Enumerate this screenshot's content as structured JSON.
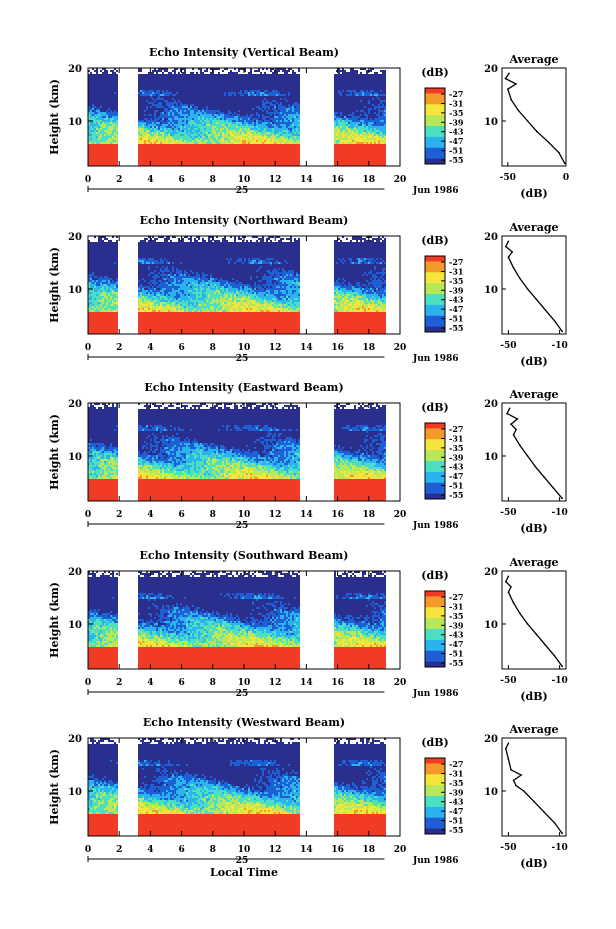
{
  "figure": {
    "xlabel": "Local Time",
    "date_label": "Jun 1986",
    "day_label": "25",
    "colorbar_unit": "(dB)",
    "colorbar_ticks": [
      "-27",
      "-31",
      "-35",
      "-39",
      "-43",
      "-47",
      "-51",
      "-55"
    ],
    "colors": {
      "scale": [
        "#2a2f8e",
        "#1f5fd6",
        "#2bb3f0",
        "#4de0c0",
        "#b7e85a",
        "#f5e53c",
        "#f59a2a",
        "#f23b24"
      ],
      "background": "#ffffff",
      "axis": "#000000"
    }
  },
  "chart_data": [
    {
      "type": "heatmap",
      "title": "Echo Intensity (Vertical Beam)",
      "ylabel": "Height (km)",
      "xlim": [
        0,
        20
      ],
      "ylim": [
        1.5,
        20
      ],
      "xticks": [
        0,
        2,
        4,
        6,
        8,
        10,
        12,
        14,
        16,
        18,
        20
      ],
      "yticks": [
        10,
        20
      ],
      "data_gaps_hours": [
        [
          1.8,
          3.2
        ],
        [
          13.5,
          15.7
        ]
      ],
      "data_end_hour": 19.0,
      "colorbar": {
        "unit": "(dB)",
        "range": [
          -55,
          -27
        ]
      },
      "average_profile": {
        "title": "Average",
        "xlabel": "(dB)",
        "xlim": [
          -55,
          0
        ],
        "xticks": [
          -50,
          0
        ],
        "ylim": [
          1.5,
          20
        ],
        "yticks": [
          10,
          20
        ],
        "height_km": [
          2,
          4,
          6,
          8,
          10,
          12,
          14,
          16,
          17,
          18,
          19
        ],
        "intensity_db": [
          -1,
          -6,
          -15,
          -25,
          -33,
          -41,
          -47,
          -50,
          -43,
          -52,
          -49
        ]
      }
    },
    {
      "type": "heatmap",
      "title": "Echo Intensity (Northward Beam)",
      "ylabel": "Height (km)",
      "xlim": [
        0,
        20
      ],
      "ylim": [
        1.5,
        20
      ],
      "xticks": [
        0,
        2,
        4,
        6,
        8,
        10,
        12,
        14,
        16,
        18,
        20
      ],
      "yticks": [
        10,
        20
      ],
      "data_gaps_hours": [
        [
          1.8,
          3.2
        ],
        [
          13.5,
          15.7
        ]
      ],
      "data_end_hour": 19.0,
      "colorbar": {
        "unit": "(dB)",
        "range": [
          -55,
          -27
        ]
      },
      "average_profile": {
        "title": "Average",
        "xlabel": "(dB)",
        "xlim": [
          -55,
          -5
        ],
        "xticks": [
          -50,
          -10
        ],
        "ylim": [
          1.5,
          20
        ],
        "yticks": [
          10,
          20
        ],
        "height_km": [
          2,
          4,
          6,
          8,
          10,
          12,
          14,
          16,
          17,
          18,
          19
        ],
        "intensity_db": [
          -8,
          -14,
          -21,
          -28,
          -35,
          -41,
          -46,
          -50,
          -47,
          -52,
          -50
        ]
      }
    },
    {
      "type": "heatmap",
      "title": "Echo Intensity (Eastward Beam)",
      "ylabel": "Height (km)",
      "xlim": [
        0,
        20
      ],
      "ylim": [
        1.5,
        20
      ],
      "xticks": [
        0,
        2,
        4,
        6,
        8,
        10,
        12,
        14,
        16,
        18,
        20
      ],
      "yticks": [
        10,
        20
      ],
      "data_gaps_hours": [
        [
          1.8,
          3.2
        ],
        [
          13.5,
          15.7
        ]
      ],
      "data_end_hour": 19.0,
      "colorbar": {
        "unit": "(dB)",
        "range": [
          -55,
          -27
        ]
      },
      "average_profile": {
        "title": "Average",
        "xlabel": "(dB)",
        "xlim": [
          -55,
          -5
        ],
        "xticks": [
          -50,
          -10
        ],
        "ylim": [
          1.5,
          20
        ],
        "yticks": [
          10,
          20
        ],
        "height_km": [
          2,
          4,
          6,
          8,
          10,
          12,
          14,
          15,
          16,
          17,
          18,
          19
        ],
        "intensity_db": [
          -8,
          -15,
          -22,
          -29,
          -35,
          -41,
          -46,
          -44,
          -48,
          -43,
          -51,
          -49
        ]
      }
    },
    {
      "type": "heatmap",
      "title": "Echo Intensity (Southward Beam)",
      "ylabel": "Height (km)",
      "xlim": [
        0,
        20
      ],
      "ylim": [
        1.5,
        20
      ],
      "xticks": [
        0,
        2,
        4,
        6,
        8,
        10,
        12,
        14,
        16,
        18,
        20
      ],
      "yticks": [
        10,
        20
      ],
      "data_gaps_hours": [
        [
          1.8,
          3.2
        ],
        [
          13.5,
          15.7
        ]
      ],
      "data_end_hour": 19.0,
      "colorbar": {
        "unit": "(dB)",
        "range": [
          -55,
          -27
        ]
      },
      "average_profile": {
        "title": "Average",
        "xlabel": "(dB)",
        "xlim": [
          -55,
          -5
        ],
        "xticks": [
          -50,
          -10
        ],
        "ylim": [
          1.5,
          20
        ],
        "yticks": [
          10,
          20
        ],
        "height_km": [
          2,
          4,
          6,
          8,
          10,
          12,
          14,
          16,
          17,
          18,
          19
        ],
        "intensity_db": [
          -8,
          -14,
          -21,
          -28,
          -35,
          -41,
          -46,
          -50,
          -48,
          -52,
          -50
        ]
      }
    },
    {
      "type": "heatmap",
      "title": "Echo Intensity (Westward Beam)",
      "ylabel": "Height (km)",
      "xlim": [
        0,
        20
      ],
      "ylim": [
        1.5,
        20
      ],
      "xticks": [
        0,
        2,
        4,
        6,
        8,
        10,
        12,
        14,
        16,
        18,
        20
      ],
      "yticks": [
        10,
        20
      ],
      "data_gaps_hours": [
        [
          1.8,
          3.2
        ],
        [
          13.5,
          15.7
        ]
      ],
      "data_end_hour": 19.0,
      "colorbar": {
        "unit": "(dB)",
        "range": [
          -55,
          -27
        ]
      },
      "average_profile": {
        "title": "Average",
        "xlabel": "(dB)",
        "xlim": [
          -55,
          -5
        ],
        "xticks": [
          -50,
          -10
        ],
        "ylim": [
          1.5,
          20
        ],
        "yticks": [
          10,
          20
        ],
        "height_km": [
          2,
          4,
          6,
          8,
          10,
          11,
          12,
          13,
          14,
          16,
          18,
          19
        ],
        "intensity_db": [
          -8,
          -14,
          -22,
          -30,
          -38,
          -44,
          -46,
          -40,
          -48,
          -50,
          -52,
          -50
        ]
      }
    }
  ]
}
